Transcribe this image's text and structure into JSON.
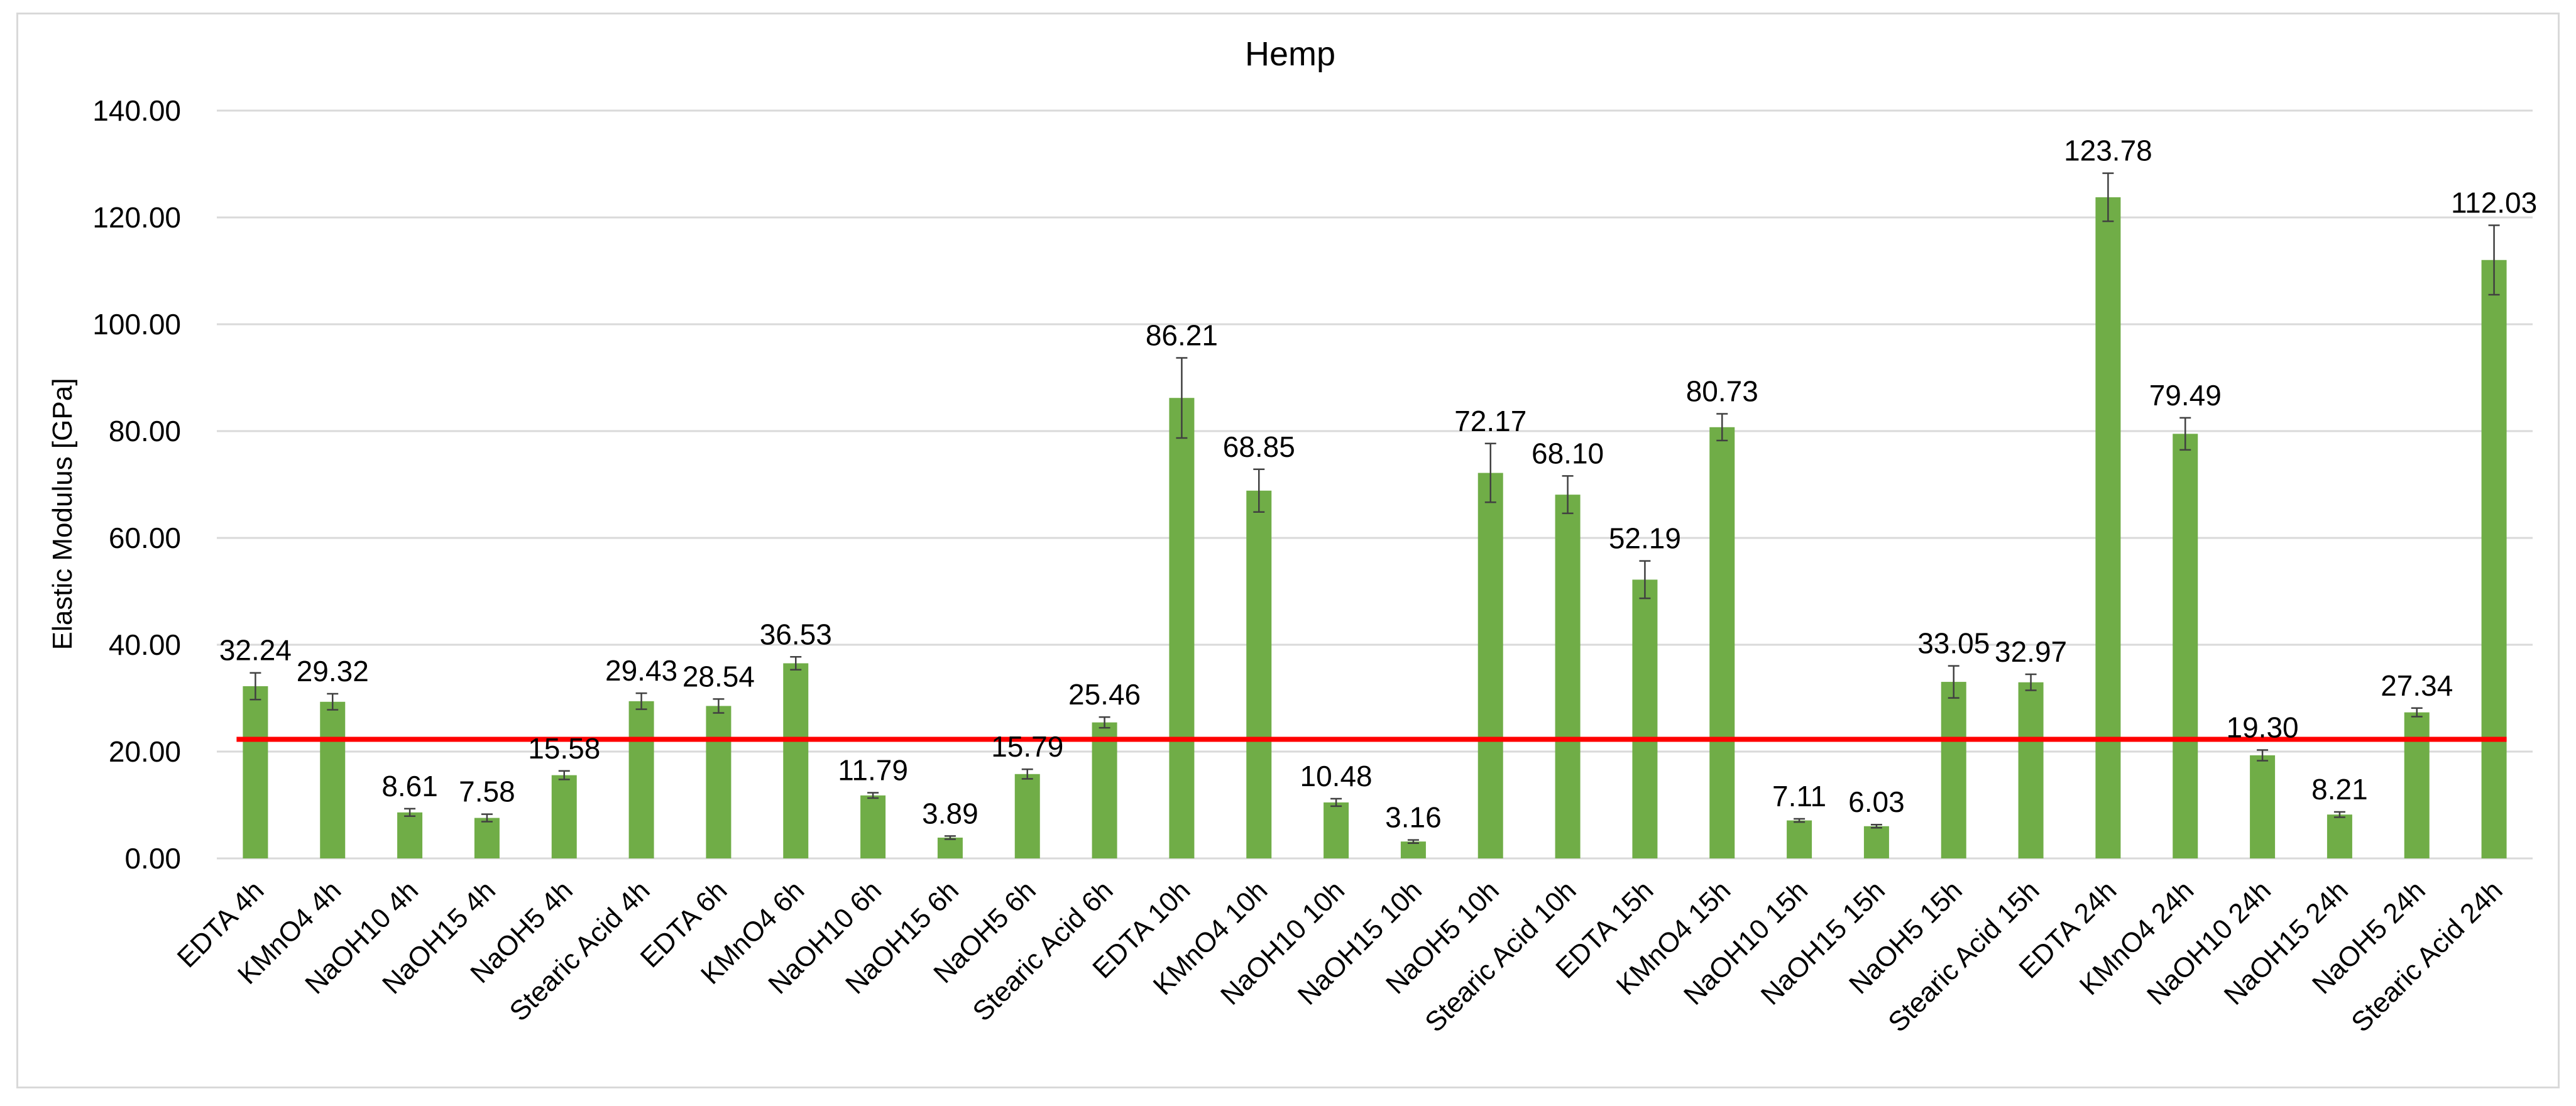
{
  "chart_data": {
    "type": "bar",
    "title": "Hemp",
    "xlabel": "",
    "ylabel": "Elastic Modulus [GPa]",
    "ylim": [
      0,
      140
    ],
    "yticks": [
      0,
      20,
      40,
      60,
      80,
      100,
      120,
      140
    ],
    "ytick_labels": [
      "0.00",
      "20.00",
      "40.00",
      "60.00",
      "80.00",
      "100.00",
      "120.00",
      "140.00"
    ],
    "grid": true,
    "categories": [
      "EDTA 4h",
      "KMnO4 4h",
      "NaOH10 4h",
      "NaOH15 4h",
      "NaOH5 4h",
      "Stearic Acid  4h",
      "EDTA 6h",
      "KMnO4 6h",
      "NaOH10 6h",
      "NaOH15 6h",
      "NaOH5 6h",
      "Stearic Acid  6h",
      "EDTA 10h",
      "KMnO4 10h",
      "NaOH10 10h",
      "NaOH15 10h",
      "NaOH5 10h",
      "Stearic Acid  10h",
      "EDTA 15h",
      "KMnO4 15h",
      "NaOH10 15h",
      "NaOH15 15h",
      "NaOH5 15h",
      "Stearic Acid  15h",
      "EDTA 24h",
      "KMnO4 24h",
      "NaOH10 24h",
      "NaOH15 24h",
      "NaOH5 24h",
      "Stearic Acid  24h"
    ],
    "values": [
      32.24,
      29.32,
      8.61,
      7.58,
      15.58,
      29.43,
      28.54,
      36.53,
      11.79,
      3.89,
      15.79,
      25.46,
      86.21,
      68.85,
      10.48,
      3.16,
      72.17,
      68.1,
      52.19,
      80.73,
      7.11,
      6.03,
      33.05,
      32.97,
      123.78,
      79.49,
      19.3,
      8.21,
      27.34,
      112.03
    ],
    "value_labels": [
      "32.24",
      "29.32",
      "8.61",
      "7.58",
      "15.58",
      "29.43",
      "28.54",
      "36.53",
      "11.79",
      "3.89",
      "15.79",
      "25.46",
      "86.21",
      "68.85",
      "10.48",
      "3.16",
      "72.17",
      "68.10",
      "52.19",
      "80.73",
      "7.11",
      "6.03",
      "33.05",
      "32.97",
      "123.78",
      "79.49",
      "19.30",
      "8.21",
      "27.34",
      "112.03"
    ],
    "errors": [
      2.5,
      1.5,
      0.7,
      0.7,
      0.8,
      1.5,
      1.3,
      1.2,
      0.5,
      0.3,
      0.9,
      1.0,
      7.5,
      4.0,
      0.7,
      0.3,
      5.5,
      3.5,
      3.5,
      2.5,
      0.3,
      0.3,
      3.0,
      1.5,
      4.5,
      3.0,
      1.0,
      0.5,
      0.8,
      6.5
    ],
    "reference_line": {
      "value": 22.3,
      "color": "#ff0000"
    },
    "bar_color": "#70ad47",
    "error_bar_color": "#404040",
    "gridline_color": "#d9d9d9"
  }
}
